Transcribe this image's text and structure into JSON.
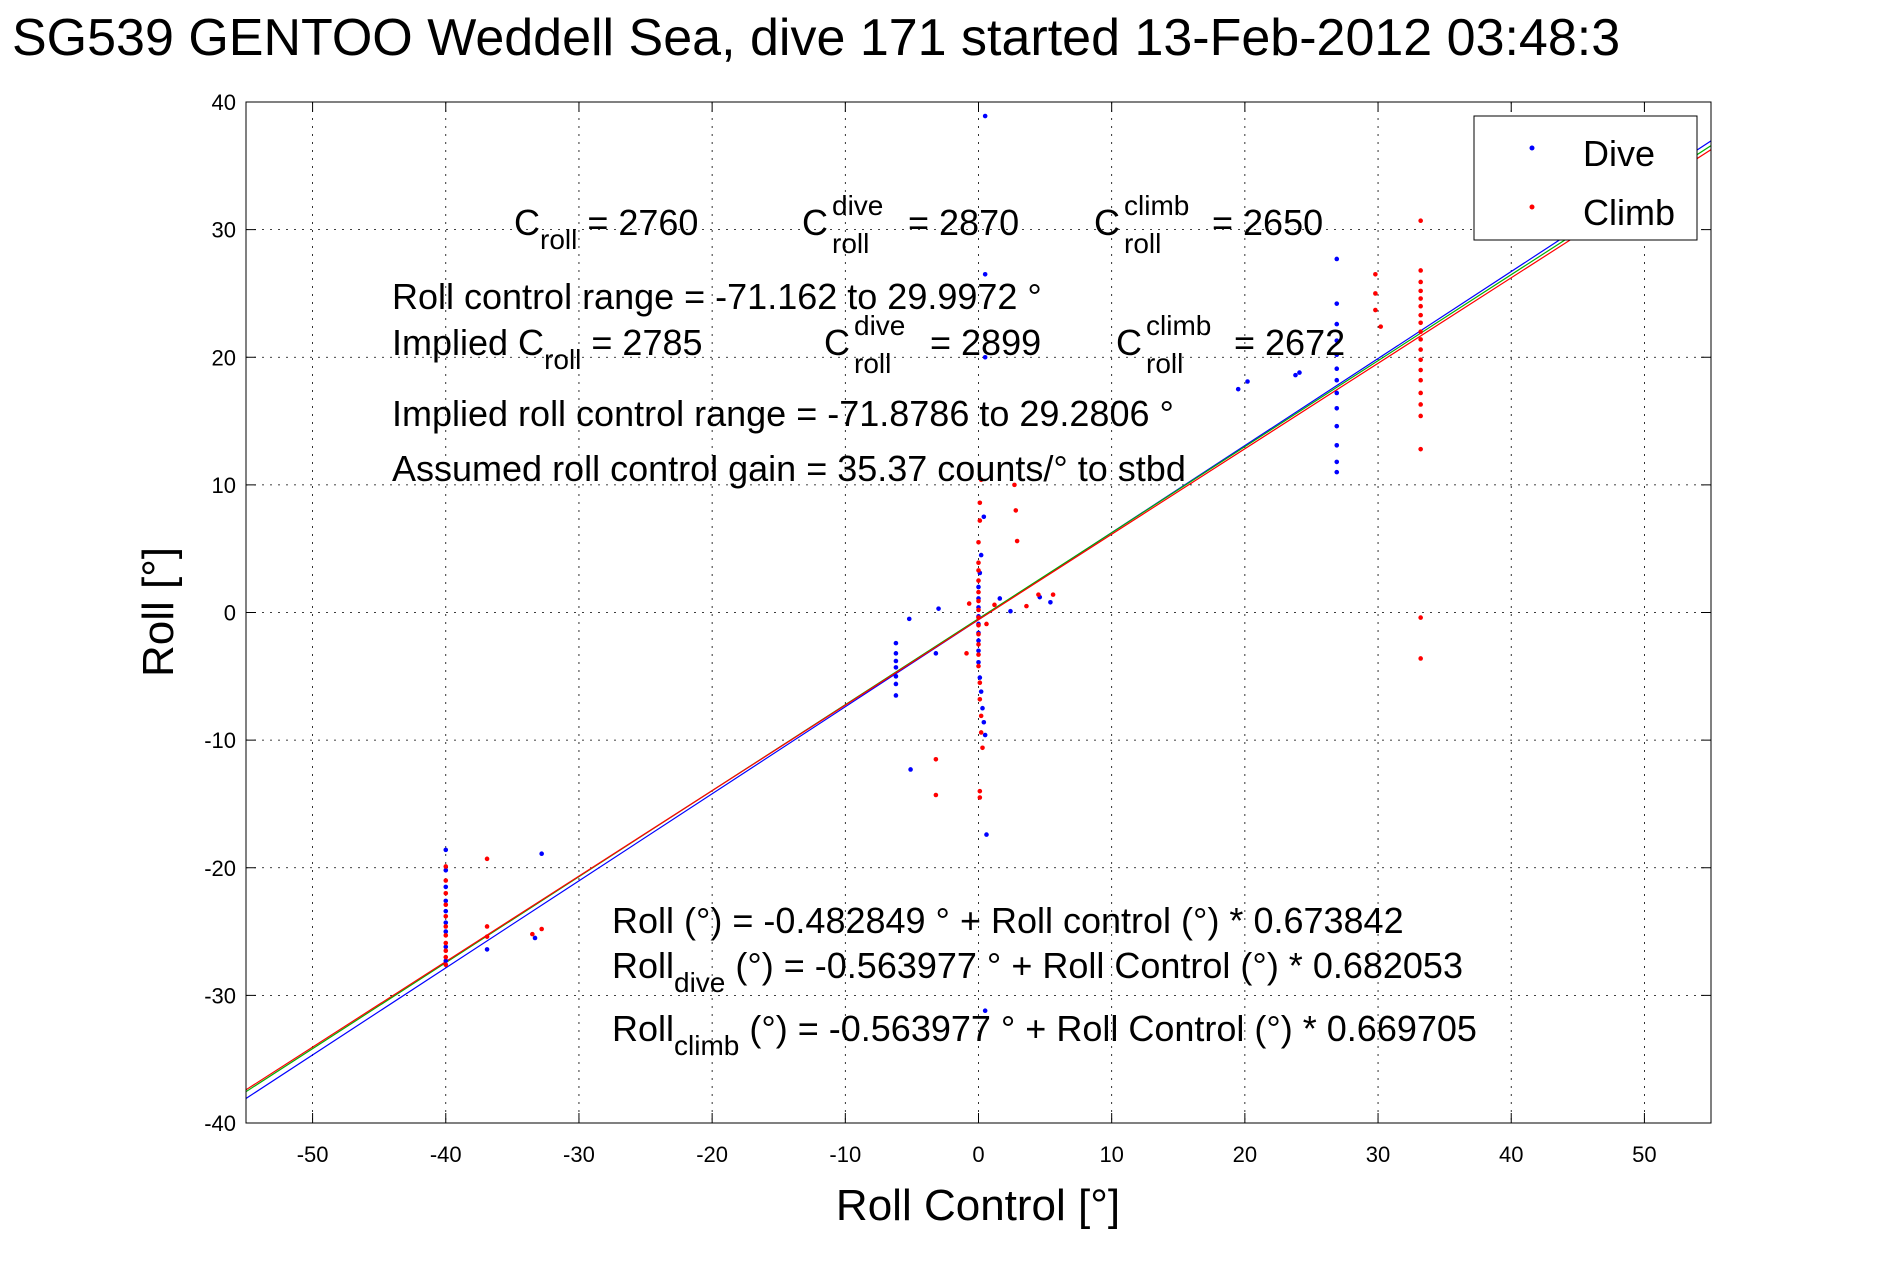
{
  "chart_data": {
    "type": "scatter",
    "title": "SG539 GENTOO Weddell Sea, dive 171 started 13-Feb-2012 03:48:3",
    "xlabel": "Roll Control [°]",
    "ylabel": "Roll [°]",
    "xlim": [
      -55,
      55
    ],
    "ylim": [
      -40,
      40
    ],
    "xticks": [
      -50,
      -40,
      -30,
      -20,
      -10,
      0,
      10,
      20,
      30,
      40,
      50
    ],
    "yticks": [
      -40,
      -30,
      -20,
      -10,
      0,
      10,
      20,
      30,
      40
    ],
    "grid": true,
    "legend": {
      "position": "top-right",
      "entries": [
        "Dive",
        "Climb"
      ]
    },
    "series": [
      {
        "name": "Dive",
        "color": "#0000ff",
        "points": [
          [
            -40.0,
            -18.6
          ],
          [
            -40.0,
            -20.2
          ],
          [
            -40.0,
            -21.5
          ],
          [
            -40.0,
            -22.6
          ],
          [
            -40.0,
            -23.4
          ],
          [
            -40.0,
            -24.3
          ],
          [
            -40.0,
            -25.0
          ],
          [
            -40.0,
            -26.2
          ],
          [
            -40.0,
            -27.3
          ],
          [
            -36.9,
            -26.4
          ],
          [
            -33.3,
            -25.5
          ],
          [
            -32.8,
            -18.9
          ],
          [
            -6.2,
            -2.4
          ],
          [
            -6.2,
            -3.2
          ],
          [
            -6.2,
            -3.8
          ],
          [
            -6.2,
            -4.3
          ],
          [
            -6.2,
            -5.0
          ],
          [
            -6.2,
            -5.6
          ],
          [
            -6.2,
            -6.5
          ],
          [
            -5.2,
            -0.5
          ],
          [
            -5.1,
            -12.3
          ],
          [
            -3.2,
            -3.2
          ],
          [
            -3.0,
            0.3
          ],
          [
            0.5,
            38.9
          ],
          [
            0.5,
            26.5
          ],
          [
            0.5,
            20.0
          ],
          [
            0.4,
            7.5
          ],
          [
            0.2,
            4.5
          ],
          [
            0.1,
            3.1
          ],
          [
            0.0,
            2.0
          ],
          [
            0.0,
            1.1
          ],
          [
            0.0,
            0.4
          ],
          [
            0.0,
            -0.3
          ],
          [
            0.0,
            -0.9
          ],
          [
            0.0,
            -1.6
          ],
          [
            0.0,
            -2.2
          ],
          [
            0.0,
            -3.0
          ],
          [
            0.0,
            -3.9
          ],
          [
            0.1,
            -5.1
          ],
          [
            0.2,
            -6.2
          ],
          [
            0.3,
            -7.5
          ],
          [
            0.4,
            -8.6
          ],
          [
            0.5,
            -9.6
          ],
          [
            0.6,
            -17.4
          ],
          [
            0.5,
            -31.2
          ],
          [
            1.6,
            1.1
          ],
          [
            2.4,
            0.1
          ],
          [
            4.6,
            1.2
          ],
          [
            5.4,
            0.8
          ],
          [
            19.5,
            17.5
          ],
          [
            20.2,
            18.1
          ],
          [
            23.8,
            18.6
          ],
          [
            24.1,
            18.8
          ],
          [
            26.9,
            27.7
          ],
          [
            26.9,
            24.2
          ],
          [
            26.9,
            22.6
          ],
          [
            26.9,
            21.3
          ],
          [
            26.9,
            20.2
          ],
          [
            26.9,
            19.1
          ],
          [
            26.9,
            18.2
          ],
          [
            26.9,
            17.2
          ],
          [
            26.9,
            16.0
          ],
          [
            26.9,
            14.6
          ],
          [
            26.9,
            13.1
          ],
          [
            26.9,
            11.8
          ],
          [
            26.9,
            11.0
          ]
        ]
      },
      {
        "name": "Climb",
        "color": "#ff0000",
        "points": [
          [
            -40.0,
            -19.9
          ],
          [
            -40.0,
            -21.0
          ],
          [
            -40.0,
            -22.0
          ],
          [
            -40.0,
            -22.9
          ],
          [
            -40.0,
            -23.8
          ],
          [
            -40.0,
            -24.6
          ],
          [
            -40.0,
            -25.3
          ],
          [
            -40.0,
            -25.9
          ],
          [
            -40.0,
            -26.5
          ],
          [
            -40.0,
            -27.0
          ],
          [
            -40.0,
            -27.6
          ],
          [
            -36.9,
            -19.3
          ],
          [
            -36.9,
            -24.6
          ],
          [
            -36.9,
            -25.4
          ],
          [
            -33.5,
            -25.2
          ],
          [
            -32.8,
            -24.8
          ],
          [
            -3.2,
            -11.5
          ],
          [
            -3.2,
            -14.3
          ],
          [
            -0.9,
            -3.2
          ],
          [
            0.2,
            10.4
          ],
          [
            0.1,
            8.6
          ],
          [
            0.1,
            7.2
          ],
          [
            0.0,
            5.5
          ],
          [
            0.0,
            3.9
          ],
          [
            0.0,
            3.3
          ],
          [
            0.0,
            2.5
          ],
          [
            0.0,
            1.6
          ],
          [
            0.0,
            0.9
          ],
          [
            0.0,
            0.2
          ],
          [
            0.0,
            -0.4
          ],
          [
            0.0,
            -1.0
          ],
          [
            0.0,
            -1.7
          ],
          [
            0.0,
            -2.5
          ],
          [
            0.0,
            -3.3
          ],
          [
            0.0,
            -4.2
          ],
          [
            0.1,
            -5.5
          ],
          [
            0.1,
            -6.8
          ],
          [
            0.2,
            -8.1
          ],
          [
            0.2,
            -9.4
          ],
          [
            0.3,
            -10.6
          ],
          [
            0.1,
            -14.0
          ],
          [
            0.1,
            -14.5
          ],
          [
            -0.7,
            0.7
          ],
          [
            0.6,
            -0.9
          ],
          [
            1.2,
            0.6
          ],
          [
            2.8,
            8.0
          ],
          [
            2.7,
            10.0
          ],
          [
            2.9,
            5.6
          ],
          [
            3.6,
            0.5
          ],
          [
            4.5,
            1.4
          ],
          [
            5.6,
            1.4
          ],
          [
            29.8,
            26.5
          ],
          [
            29.8,
            25.0
          ],
          [
            29.8,
            23.7
          ],
          [
            30.2,
            22.4
          ],
          [
            33.2,
            30.7
          ],
          [
            33.2,
            26.8
          ],
          [
            33.2,
            25.9
          ],
          [
            33.2,
            25.2
          ],
          [
            33.2,
            24.6
          ],
          [
            33.2,
            24.0
          ],
          [
            33.2,
            23.3
          ],
          [
            33.2,
            22.7
          ],
          [
            33.2,
            22.0
          ],
          [
            33.2,
            21.4
          ],
          [
            33.2,
            20.6
          ],
          [
            33.2,
            19.8
          ],
          [
            33.2,
            19.0
          ],
          [
            33.2,
            18.2
          ],
          [
            33.2,
            17.2
          ],
          [
            33.2,
            16.3
          ],
          [
            33.2,
            15.4
          ],
          [
            33.2,
            12.8
          ],
          [
            33.2,
            -0.4
          ],
          [
            33.2,
            -3.6
          ]
        ]
      }
    ],
    "fit_lines": [
      {
        "color": "#0000ff",
        "intercept": -0.563977,
        "slope": 0.682053
      },
      {
        "color": "#00b000",
        "intercept": -0.482849,
        "slope": 0.673842
      },
      {
        "color": "#ff0000",
        "intercept": -0.563977,
        "slope": 0.669705
      }
    ],
    "annotations": {
      "c_roll": {
        "base": "C",
        "sub": "roll",
        "value": " = 2760"
      },
      "c_roll_dive": {
        "base": "C",
        "sup": "dive",
        "sub": "roll",
        "value": " = 2870"
      },
      "c_roll_climb": {
        "base": "C",
        "sup": "climb",
        "sub": "roll",
        "value": " = 2650"
      },
      "range_line": "Roll control range = -71.162 to 29.9972 °",
      "implied_c_roll": {
        "prefix": "Implied C",
        "sub": "roll",
        "value": " = 2785"
      },
      "implied_dive": {
        "base": "C",
        "sup": "dive",
        "sub": "roll",
        "value": " = 2899"
      },
      "implied_climb": {
        "base": "C",
        "sup": "climb",
        "sub": "roll",
        "value": " = 2672"
      },
      "implied_range_line": "Implied roll control range = -71.8786 to 29.2806 °",
      "gain_line": "Assumed roll control gain = 35.37 counts/° to stbd",
      "fit_all": "Roll (°) = -0.482849 ° + Roll control (°) * 0.673842",
      "fit_dive": {
        "base": "Roll",
        "sub": "dive",
        "text": " (°) = -0.563977 ° + Roll Control (°) * 0.682053"
      },
      "fit_climb": {
        "base": "Roll",
        "sub": "climb",
        "text": " (°) = -0.563977 ° + Roll Control (°) * 0.669705"
      }
    }
  }
}
